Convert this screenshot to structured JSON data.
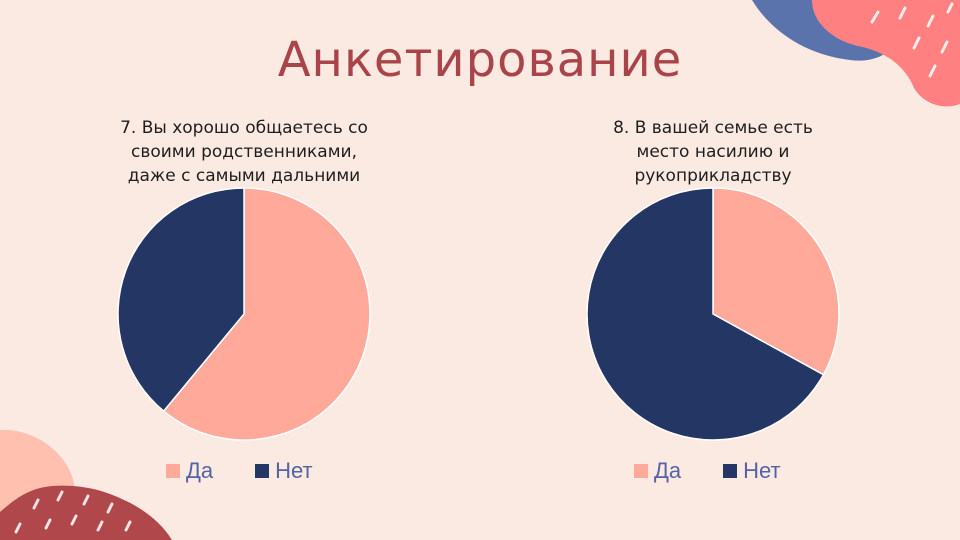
{
  "slide": {
    "title": "Анкетирование"
  },
  "colors": {
    "background": "#FBEAE2",
    "yes": "#FFA99A",
    "no": "#243764",
    "title": "#A9454A",
    "legend_text": "#5563A5",
    "deco_coral": "#FF8080",
    "deco_blue": "#5A73AD",
    "deco_red": "#B0484B",
    "deco_peach": "#FFC0B0"
  },
  "chart_data": [
    {
      "type": "pie",
      "title_lines": [
        "7.  Вы хорошо общаетесь со",
        "своими родственниками,",
        "даже с самыми дальними"
      ],
      "categories": [
        "Да",
        "Нет"
      ],
      "values": [
        61,
        39
      ],
      "legend_position": "bottom"
    },
    {
      "type": "pie",
      "title_lines": [
        "8. В вашей семье есть",
        "место насилию и",
        "рукоприкладству"
      ],
      "categories": [
        "Да",
        "Нет"
      ],
      "values": [
        33,
        67
      ],
      "legend_position": "bottom"
    }
  ]
}
